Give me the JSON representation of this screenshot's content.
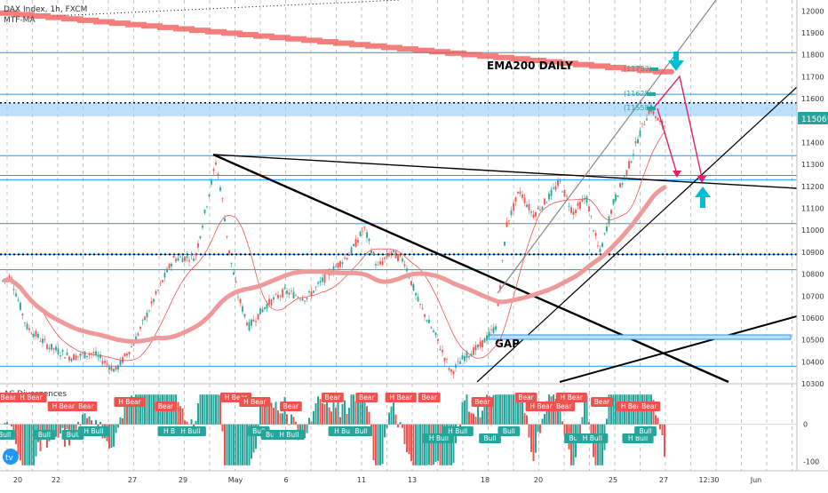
{
  "header": {
    "symbol": "DAX Index, 1h, FXCM",
    "indicator": "MTF-MA"
  },
  "sub_pane_title": "AC Divergences",
  "annotations": {
    "ema_label": "EMA200 DAILY",
    "gap_label": "GAP",
    "tag_top": "(11733)",
    "tag_mid": "(11625)",
    "tag_low": "(11558)",
    "current_price": "11506"
  },
  "chart_data": [
    {
      "type": "line",
      "ylim": [
        10300,
        12050
      ],
      "price_ticks": [
        10300,
        10400,
        10500,
        10600,
        10700,
        10800,
        10900,
        11000,
        11100,
        11200,
        11300,
        11400,
        11500,
        11600,
        11700,
        11800,
        11900,
        12000
      ],
      "x_labels": [
        "20",
        "22",
        "27",
        "29",
        "May",
        "6",
        "11",
        "13",
        "18",
        "20",
        "25",
        "27",
        "12:30",
        "Jun"
      ],
      "horizontal_levels": [
        10380,
        10820,
        10890,
        11030,
        11230,
        11250,
        11340,
        11620,
        11810
      ],
      "highlight_band": [
        11520,
        11580
      ],
      "current_price": 11506,
      "colors": {
        "bull": "#26a69a",
        "bear": "#ef5350",
        "levels": "#2196f3",
        "ema": "#ef5350",
        "price_tag": "#26a69a",
        "band": "#90caf9"
      }
    },
    {
      "type": "bar",
      "title": "AC Divergences",
      "ylim": [
        -120,
        90
      ],
      "ticks": [
        -100,
        0
      ],
      "labels": [
        {
          "text": "Bear",
          "kind": "bear",
          "t": 0.3
        },
        {
          "text": "H Bear",
          "kind": "bear",
          "t": 1.5
        },
        {
          "text": "Bull",
          "kind": "bull",
          "t": 0.1
        },
        {
          "text": "Bull",
          "kind": "bull",
          "t": 2.2
        },
        {
          "text": "Bull",
          "kind": "bull",
          "t": 3.7
        },
        {
          "text": "H Bear",
          "kind": "bear",
          "t": 3.2
        },
        {
          "text": "Bear",
          "kind": "bear",
          "t": 4.4
        },
        {
          "text": "H Bull",
          "kind": "bull",
          "t": 4.8
        },
        {
          "text": "H Bear",
          "kind": "bear",
          "t": 6.7
        },
        {
          "text": "Bear",
          "kind": "bear",
          "t": 8.6
        },
        {
          "text": "H Bull",
          "kind": "bull",
          "t": 9.0
        },
        {
          "text": "H Bull",
          "kind": "bull",
          "t": 9.9
        },
        {
          "text": "H Bear",
          "kind": "bear",
          "t": 12.3
        },
        {
          "text": "H Bear",
          "kind": "bear",
          "t": 13.3
        },
        {
          "text": "Bull",
          "kind": "bull",
          "t": 13.5
        },
        {
          "text": "Bull",
          "kind": "bull",
          "t": 14.2
        },
        {
          "text": "Bear",
          "kind": "bear",
          "t": 15.2
        },
        {
          "text": "H Bull",
          "kind": "bull",
          "t": 15.1
        },
        {
          "text": "Bear",
          "kind": "bear",
          "t": 17.4
        },
        {
          "text": "H Bull",
          "kind": "bull",
          "t": 18.0
        },
        {
          "text": "Bull",
          "kind": "bull",
          "t": 18.9
        },
        {
          "text": "Bear",
          "kind": "bear",
          "t": 19.2
        },
        {
          "text": "H Bear",
          "kind": "bear",
          "t": 21.0
        },
        {
          "text": "Bear",
          "kind": "bear",
          "t": 22.5
        },
        {
          "text": "H Bull",
          "kind": "bull",
          "t": 23.0
        },
        {
          "text": "H Bull",
          "kind": "bull",
          "t": 24.0
        },
        {
          "text": "Bear",
          "kind": "bear",
          "t": 25.3
        },
        {
          "text": "Bull",
          "kind": "bull",
          "t": 25.7
        },
        {
          "text": "Bull",
          "kind": "bull",
          "t": 26.7
        },
        {
          "text": "Bear",
          "kind": "bear",
          "t": 27.6
        },
        {
          "text": "H Bear",
          "kind": "bear",
          "t": 28.4
        },
        {
          "text": "Bear",
          "kind": "bear",
          "t": 29.6
        },
        {
          "text": "H Bear",
          "kind": "bear",
          "t": 30.0
        },
        {
          "text": "Bull",
          "kind": "bull",
          "t": 30.2
        },
        {
          "text": "H Bull",
          "kind": "bull",
          "t": 31.1
        },
        {
          "text": "Bear",
          "kind": "bear",
          "t": 31.6
        },
        {
          "text": "H Bear",
          "kind": "bear",
          "t": 33.2
        },
        {
          "text": "H Bull",
          "kind": "bull",
          "t": 33.5
        },
        {
          "text": "Bull",
          "kind": "bull",
          "t": 33.9
        },
        {
          "text": "Bear",
          "kind": "bear",
          "t": 34.1
        }
      ]
    }
  ]
}
